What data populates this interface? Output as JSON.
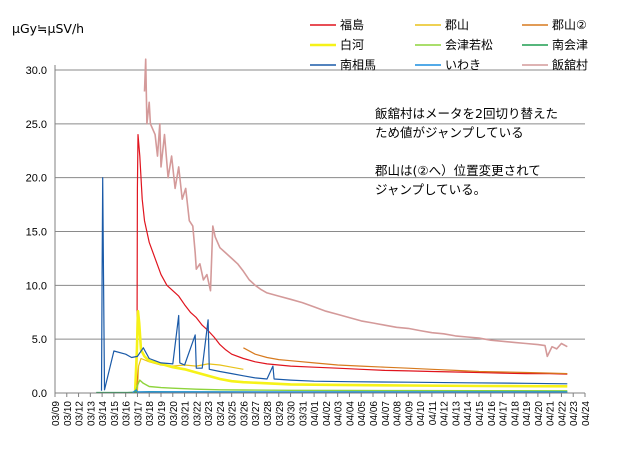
{
  "chart_data": {
    "type": "line",
    "ylabel": "μGy≒μSV/h",
    "ylim": [
      0,
      30
    ],
    "yticks": [
      "0.0",
      "5.0",
      "10.0",
      "15.0",
      "20.0",
      "25.0",
      "30.0"
    ],
    "xticks": [
      "03/09",
      "03/10",
      "03/12",
      "03/13",
      "03/14",
      "03/15",
      "03/16",
      "03/17",
      "03/18",
      "03/19",
      "03/20",
      "03/21",
      "03/22",
      "03/23",
      "03/24",
      "03/25",
      "03/26",
      "03/27",
      "03/28",
      "03/29",
      "03/30",
      "03/31",
      "04/01",
      "04/02",
      "04/03",
      "04/04",
      "04/05",
      "04/06",
      "04/07",
      "04/08",
      "04/09",
      "04/10",
      "04/11",
      "04/12",
      "04/13",
      "04/14",
      "04/15",
      "04/16",
      "04/17",
      "04/18",
      "04/19",
      "04/20",
      "04/21",
      "04/22",
      "04/23",
      "04/24"
    ],
    "grid": "horizontal",
    "legend": "top-right",
    "x_unit": "days from 03/09",
    "series": [
      {
        "name": "福島",
        "color": "#e0141e",
        "width": 1.2,
        "points": [
          [
            6.95,
            0.2
          ],
          [
            7.0,
            19
          ],
          [
            7.05,
            24
          ],
          [
            7.2,
            22
          ],
          [
            7.4,
            18
          ],
          [
            7.6,
            16
          ],
          [
            8.0,
            14
          ],
          [
            8.5,
            12.5
          ],
          [
            9.0,
            11
          ],
          [
            9.5,
            10
          ],
          [
            10,
            9.5
          ],
          [
            10.5,
            9
          ],
          [
            11,
            8.2
          ],
          [
            11.5,
            7.5
          ],
          [
            12,
            7
          ],
          [
            12.5,
            6.3
          ],
          [
            13,
            5.8
          ],
          [
            13.5,
            5.2
          ],
          [
            14,
            4.5
          ],
          [
            14.5,
            4
          ],
          [
            15,
            3.6
          ],
          [
            16,
            3.2
          ],
          [
            17,
            2.9
          ],
          [
            18,
            2.7
          ],
          [
            19,
            2.6
          ],
          [
            20,
            2.5
          ],
          [
            22,
            2.4
          ],
          [
            24,
            2.3
          ],
          [
            26,
            2.2
          ],
          [
            28,
            2.1
          ],
          [
            30,
            2.05
          ],
          [
            32,
            2.0
          ],
          [
            34,
            1.95
          ],
          [
            36,
            1.9
          ],
          [
            38,
            1.85
          ],
          [
            40,
            1.8
          ],
          [
            42,
            1.8
          ],
          [
            43.5,
            1.75
          ]
        ]
      },
      {
        "name": "郡山",
        "color": "#e8c21a",
        "width": 1.2,
        "points": [
          [
            7.0,
            0.1
          ],
          [
            7.1,
            2.5
          ],
          [
            7.3,
            3.2
          ],
          [
            8,
            2.9
          ],
          [
            9,
            2.6
          ],
          [
            10,
            2.5
          ],
          [
            11,
            2.6
          ],
          [
            12,
            2.5
          ],
          [
            13,
            2.7
          ],
          [
            14,
            2.6
          ],
          [
            15,
            2.4
          ],
          [
            16,
            2.2
          ]
        ]
      },
      {
        "name": "郡山②",
        "color": "#d77a1e",
        "width": 1.2,
        "points": [
          [
            16,
            4.2
          ],
          [
            17,
            3.6
          ],
          [
            18,
            3.3
          ],
          [
            19,
            3.1
          ],
          [
            20,
            3.0
          ],
          [
            22,
            2.8
          ],
          [
            24,
            2.6
          ],
          [
            26,
            2.5
          ],
          [
            28,
            2.4
          ],
          [
            30,
            2.3
          ],
          [
            32,
            2.2
          ],
          [
            34,
            2.1
          ],
          [
            36,
            2.0
          ],
          [
            38,
            1.95
          ],
          [
            40,
            1.9
          ],
          [
            42,
            1.85
          ],
          [
            43.5,
            1.8
          ]
        ]
      },
      {
        "name": "白河",
        "color": "#f6f218",
        "width": 2.6,
        "points": [
          [
            6.8,
            0.1
          ],
          [
            6.95,
            4
          ],
          [
            7.05,
            7.6
          ],
          [
            7.15,
            6.5
          ],
          [
            7.3,
            4
          ],
          [
            7.6,
            3.4
          ],
          [
            8,
            3.0
          ],
          [
            9,
            2.7
          ],
          [
            10,
            2.4
          ],
          [
            11,
            2.2
          ],
          [
            12,
            1.9
          ],
          [
            13,
            1.6
          ],
          [
            14,
            1.3
          ],
          [
            15,
            1.1
          ],
          [
            16,
            1.0
          ],
          [
            18,
            0.9
          ],
          [
            20,
            0.8
          ],
          [
            24,
            0.75
          ],
          [
            30,
            0.7
          ],
          [
            36,
            0.65
          ],
          [
            43.5,
            0.62
          ]
        ]
      },
      {
        "name": "会津若松",
        "color": "#8ed43c",
        "width": 1.4,
        "points": [
          [
            6.8,
            0.05
          ],
          [
            7.0,
            0.7
          ],
          [
            7.2,
            1.2
          ],
          [
            7.5,
            0.9
          ],
          [
            8,
            0.6
          ],
          [
            9,
            0.5
          ],
          [
            10,
            0.45
          ],
          [
            12,
            0.35
          ],
          [
            14,
            0.3
          ],
          [
            16,
            0.28
          ],
          [
            20,
            0.25
          ],
          [
            25,
            0.23
          ],
          [
            30,
            0.22
          ],
          [
            36,
            0.21
          ],
          [
            43.5,
            0.2
          ]
        ]
      },
      {
        "name": "南会津",
        "color": "#1f9d50",
        "width": 1.2,
        "points": [
          [
            3.5,
            0.05
          ],
          [
            6,
            0.05
          ],
          [
            7,
            0.08
          ],
          [
            8,
            0.12
          ],
          [
            10,
            0.1
          ],
          [
            14,
            0.09
          ],
          [
            20,
            0.08
          ],
          [
            30,
            0.08
          ],
          [
            43.5,
            0.08
          ]
        ]
      },
      {
        "name": "南相馬",
        "color": "#1a5aa8",
        "width": 1.2,
        "points": [
          [
            3.95,
            0.2
          ],
          [
            4.0,
            11
          ],
          [
            4.05,
            20
          ],
          [
            4.12,
            11
          ],
          [
            4.2,
            0.3
          ],
          [
            5,
            3.9
          ],
          [
            6,
            3.6
          ],
          [
            6.5,
            3.3
          ],
          [
            7,
            3.4
          ],
          [
            7.5,
            4.2
          ],
          [
            8,
            3.2
          ],
          [
            9,
            2.8
          ],
          [
            10,
            2.7
          ],
          [
            10.5,
            7.2
          ],
          [
            10.6,
            2.8
          ],
          [
            11,
            2.6
          ],
          [
            11.9,
            5.4
          ],
          [
            12,
            2.3
          ],
          [
            12.5,
            2.3
          ],
          [
            13,
            6.8
          ],
          [
            13.1,
            2.2
          ],
          [
            14,
            2.0
          ],
          [
            15,
            1.8
          ],
          [
            16,
            1.6
          ],
          [
            17,
            1.4
          ],
          [
            18,
            1.3
          ],
          [
            18.5,
            2.5
          ],
          [
            18.6,
            1.3
          ],
          [
            20,
            1.2
          ],
          [
            22,
            1.1
          ],
          [
            25,
            1.05
          ],
          [
            30,
            1.0
          ],
          [
            35,
            0.95
          ],
          [
            40,
            0.9
          ],
          [
            43.5,
            0.85
          ]
        ]
      },
      {
        "name": "いわき",
        "color": "#1a8de0",
        "width": 1.2,
        "points": [
          [
            6.6,
            0.05
          ],
          [
            6.9,
            0.3
          ],
          [
            7.0,
            0.1
          ],
          [
            10,
            0.1
          ],
          [
            20,
            0.1
          ],
          [
            43.5,
            0.1
          ]
        ]
      },
      {
        "name": "飯舘村",
        "color": "#d49a9a",
        "width": 1.6,
        "points": [
          [
            7.6,
            28
          ],
          [
            7.7,
            31
          ],
          [
            7.8,
            25
          ],
          [
            8.0,
            27
          ],
          [
            8.1,
            25
          ],
          [
            8.5,
            24
          ],
          [
            8.7,
            22
          ],
          [
            8.9,
            25
          ],
          [
            9.0,
            21
          ],
          [
            9.3,
            24
          ],
          [
            9.6,
            20
          ],
          [
            9.9,
            22
          ],
          [
            10.2,
            19
          ],
          [
            10.5,
            21
          ],
          [
            10.8,
            18
          ],
          [
            11.1,
            19
          ],
          [
            11.4,
            16
          ],
          [
            11.7,
            15.5
          ],
          [
            11.9,
            13
          ],
          [
            12.0,
            11.5
          ],
          [
            12.3,
            12
          ],
          [
            12.6,
            10.5
          ],
          [
            12.9,
            11
          ],
          [
            13.2,
            9.5
          ],
          [
            13.4,
            15.5
          ],
          [
            13.6,
            14.5
          ],
          [
            14,
            13.5
          ],
          [
            14.5,
            13
          ],
          [
            15,
            12.5
          ],
          [
            15.5,
            12
          ],
          [
            16,
            11.3
          ],
          [
            16.5,
            10.5
          ],
          [
            17,
            10
          ],
          [
            17.5,
            9.6
          ],
          [
            18,
            9.3
          ],
          [
            19,
            9
          ],
          [
            20,
            8.7
          ],
          [
            21,
            8.4
          ],
          [
            22,
            8.0
          ],
          [
            23,
            7.6
          ],
          [
            24,
            7.3
          ],
          [
            25,
            7.0
          ],
          [
            26,
            6.7
          ],
          [
            27,
            6.5
          ],
          [
            28,
            6.3
          ],
          [
            29,
            6.1
          ],
          [
            30,
            6.0
          ],
          [
            31,
            5.8
          ],
          [
            32,
            5.6
          ],
          [
            33,
            5.5
          ],
          [
            34,
            5.3
          ],
          [
            35,
            5.2
          ],
          [
            36,
            5.1
          ],
          [
            37,
            4.9
          ],
          [
            38,
            4.8
          ],
          [
            39,
            4.7
          ],
          [
            40,
            4.6
          ],
          [
            41,
            4.5
          ],
          [
            41.6,
            4.4
          ],
          [
            41.8,
            3.4
          ],
          [
            42.2,
            4.3
          ],
          [
            42.6,
            4.1
          ],
          [
            43,
            4.6
          ],
          [
            43.5,
            4.3
          ]
        ]
      }
    ]
  },
  "annotations": [
    "飯舘村はメータを2回切り替えた",
    "ため値がジャンプしている",
    "郡山は(②へ）位置変更されて",
    "ジャンプしている。"
  ]
}
